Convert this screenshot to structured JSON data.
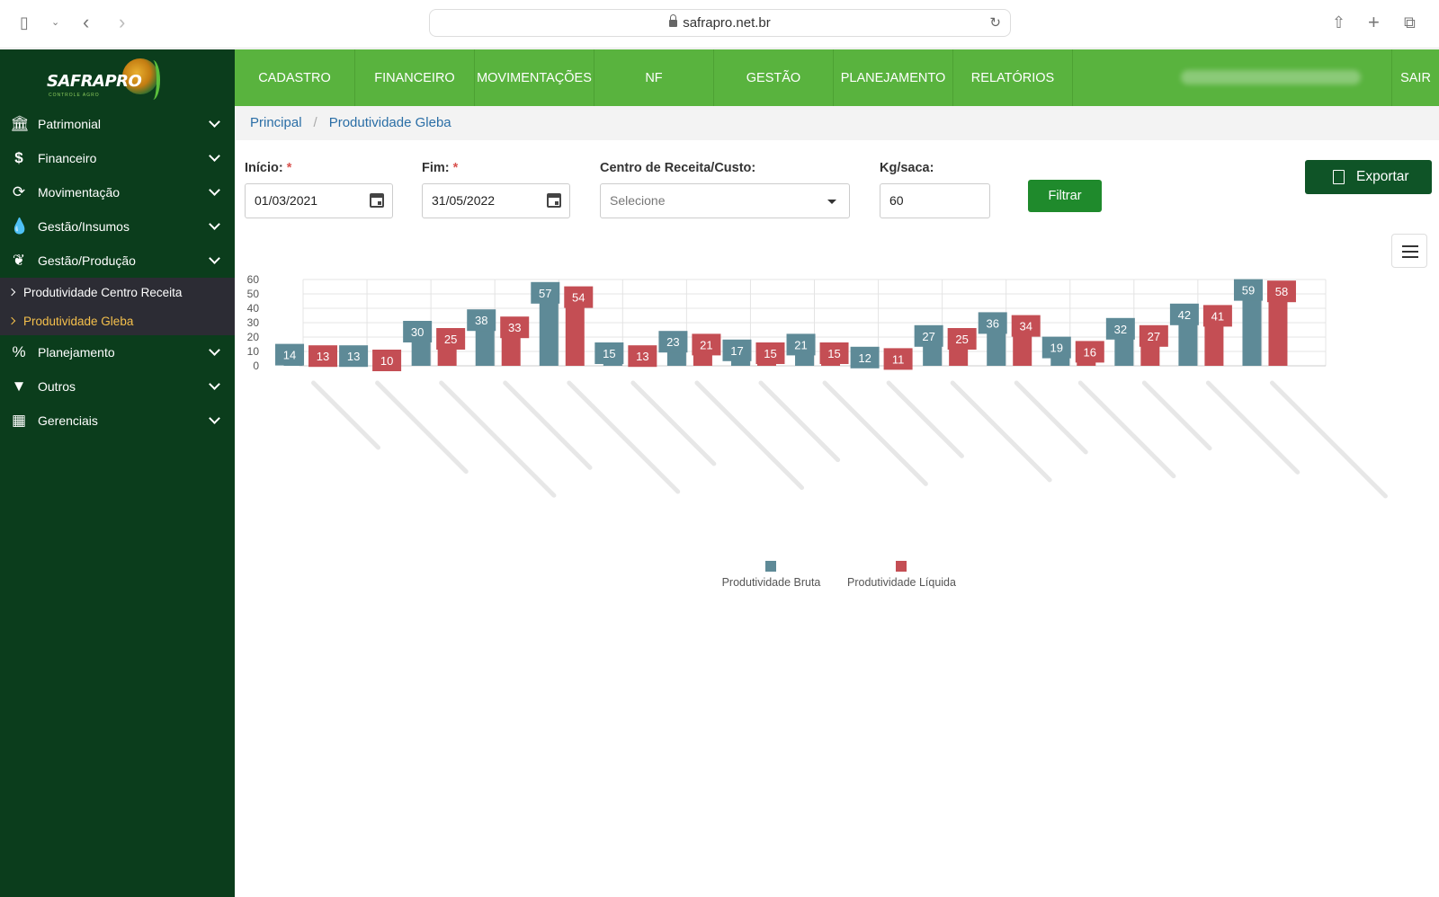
{
  "browser": {
    "url": "safrapro.net.br",
    "icons": [
      "sidebar-toggle-icon",
      "chevron-down-icon",
      "back-icon",
      "forward-icon",
      "lock-icon",
      "reload-icon",
      "share-icon",
      "new-tab-icon",
      "tabs-overview-icon"
    ]
  },
  "brand": {
    "name": "SAFRAPRO",
    "tagline": "CONTROLE AGRO"
  },
  "sidebar": {
    "items": [
      {
        "label": "Patrimonial",
        "icon": "bank-icon"
      },
      {
        "label": "Financeiro",
        "icon": "dollar-icon"
      },
      {
        "label": "Movimentação",
        "icon": "sync-icon"
      },
      {
        "label": "Gestão/Insumos",
        "icon": "droplet-icon"
      },
      {
        "label": "Gestão/Produção",
        "icon": "leaf-icon"
      }
    ],
    "subitems": [
      {
        "label": "Produtividade Centro Receita",
        "active": false
      },
      {
        "label": "Produtividade Gleba",
        "active": true
      }
    ],
    "items_after": [
      {
        "label": "Planejamento",
        "icon": "percent-icon"
      },
      {
        "label": "Outros",
        "icon": "filter-icon"
      },
      {
        "label": "Gerenciais",
        "icon": "calculator-icon"
      }
    ]
  },
  "topnav": {
    "items": [
      "CADASTRO",
      "FINANCEIRO",
      "MOVIMENTAÇÕES",
      "NF",
      "GESTÃO",
      "PLANEJAMENTO",
      "RELATÓRIOS"
    ],
    "logout": "SAIR"
  },
  "breadcrumb": {
    "home": "Principal",
    "current": "Produtividade Gleba"
  },
  "filters": {
    "inicio_label": "Início:",
    "inicio_value": "01/03/2021",
    "fim_label": "Fim:",
    "fim_value": "31/05/2022",
    "required_mark": "*",
    "centro_label": "Centro de Receita/Custo:",
    "centro_placeholder": "Selecione",
    "kg_label": "Kg/saca:",
    "kg_value": "60",
    "filter_button": "Filtrar",
    "export_button": "Exportar"
  },
  "colors": {
    "bruta": "#5e8a97",
    "liquida": "#c44e54",
    "sidebar": "#0b3d1c",
    "topnav": "#59b33e"
  },
  "chart_data": {
    "type": "bar",
    "ylim": [
      0,
      60
    ],
    "yticks": [
      0,
      10,
      20,
      30,
      40,
      50,
      60
    ],
    "grid": true,
    "legend_position": "bottom",
    "series": [
      {
        "name": "Produtividade Bruta",
        "values": [
          14,
          13,
          30,
          38,
          57,
          15,
          23,
          17,
          21,
          12,
          27,
          36,
          19,
          32,
          42,
          59
        ]
      },
      {
        "name": "Produtividade Líquida",
        "values": [
          13,
          10,
          25,
          33,
          54,
          13,
          21,
          15,
          15,
          11,
          25,
          34,
          16,
          27,
          41,
          58
        ]
      }
    ]
  }
}
